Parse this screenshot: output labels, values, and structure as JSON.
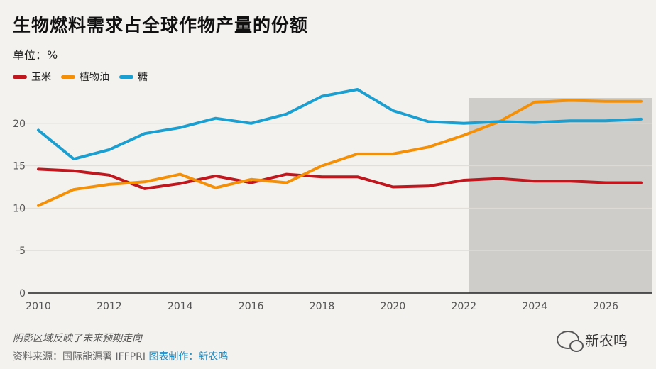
{
  "title": "生物燃料需求占全球作物产量的份额",
  "unit": "单位：%",
  "footnote": "阴影区域反映了未来预期走向",
  "source_label": "资料来源：国际能源署 IFFPRI",
  "credit_label": "图表制作：新农鸣",
  "brand_label": "新农鸣",
  "brand_icon": "wechat-icon",
  "chart_data": {
    "type": "line",
    "x": [
      2010,
      2011,
      2012,
      2013,
      2014,
      2015,
      2016,
      2017,
      2018,
      2019,
      2020,
      2021,
      2022,
      2023,
      2024,
      2025,
      2026,
      2027
    ],
    "xticks": [
      2010,
      2012,
      2014,
      2016,
      2018,
      2020,
      2022,
      2024,
      2026
    ],
    "yticks": [
      0,
      5,
      10,
      15,
      20
    ],
    "xlim": [
      2010,
      2027.3
    ],
    "ylim": [
      0,
      24
    ],
    "grid": true,
    "shaded_region": {
      "from": 2022.15,
      "to": 2027.3,
      "color": "#cfcdc9"
    },
    "series": [
      {
        "name": "玉米",
        "color": "#c0161e",
        "values": [
          14.6,
          14.4,
          13.9,
          12.3,
          12.9,
          13.8,
          13.0,
          14.0,
          13.7,
          13.7,
          12.5,
          12.6,
          13.3,
          13.5,
          13.2,
          13.2,
          13.0,
          13.0
        ]
      },
      {
        "name": "植物油",
        "color": "#f39008",
        "values": [
          10.3,
          12.2,
          12.8,
          13.1,
          14.0,
          12.4,
          13.4,
          13.0,
          15.0,
          16.4,
          16.4,
          17.2,
          18.6,
          20.2,
          22.5,
          22.7,
          22.6,
          22.6
        ]
      },
      {
        "name": "糖",
        "color": "#1a9fd0",
        "values": [
          19.2,
          15.8,
          16.9,
          18.8,
          19.5,
          20.6,
          20.0,
          21.1,
          23.2,
          24.0,
          21.5,
          20.2,
          20.0,
          20.2,
          20.1,
          20.3,
          20.3,
          20.5
        ]
      }
    ]
  }
}
